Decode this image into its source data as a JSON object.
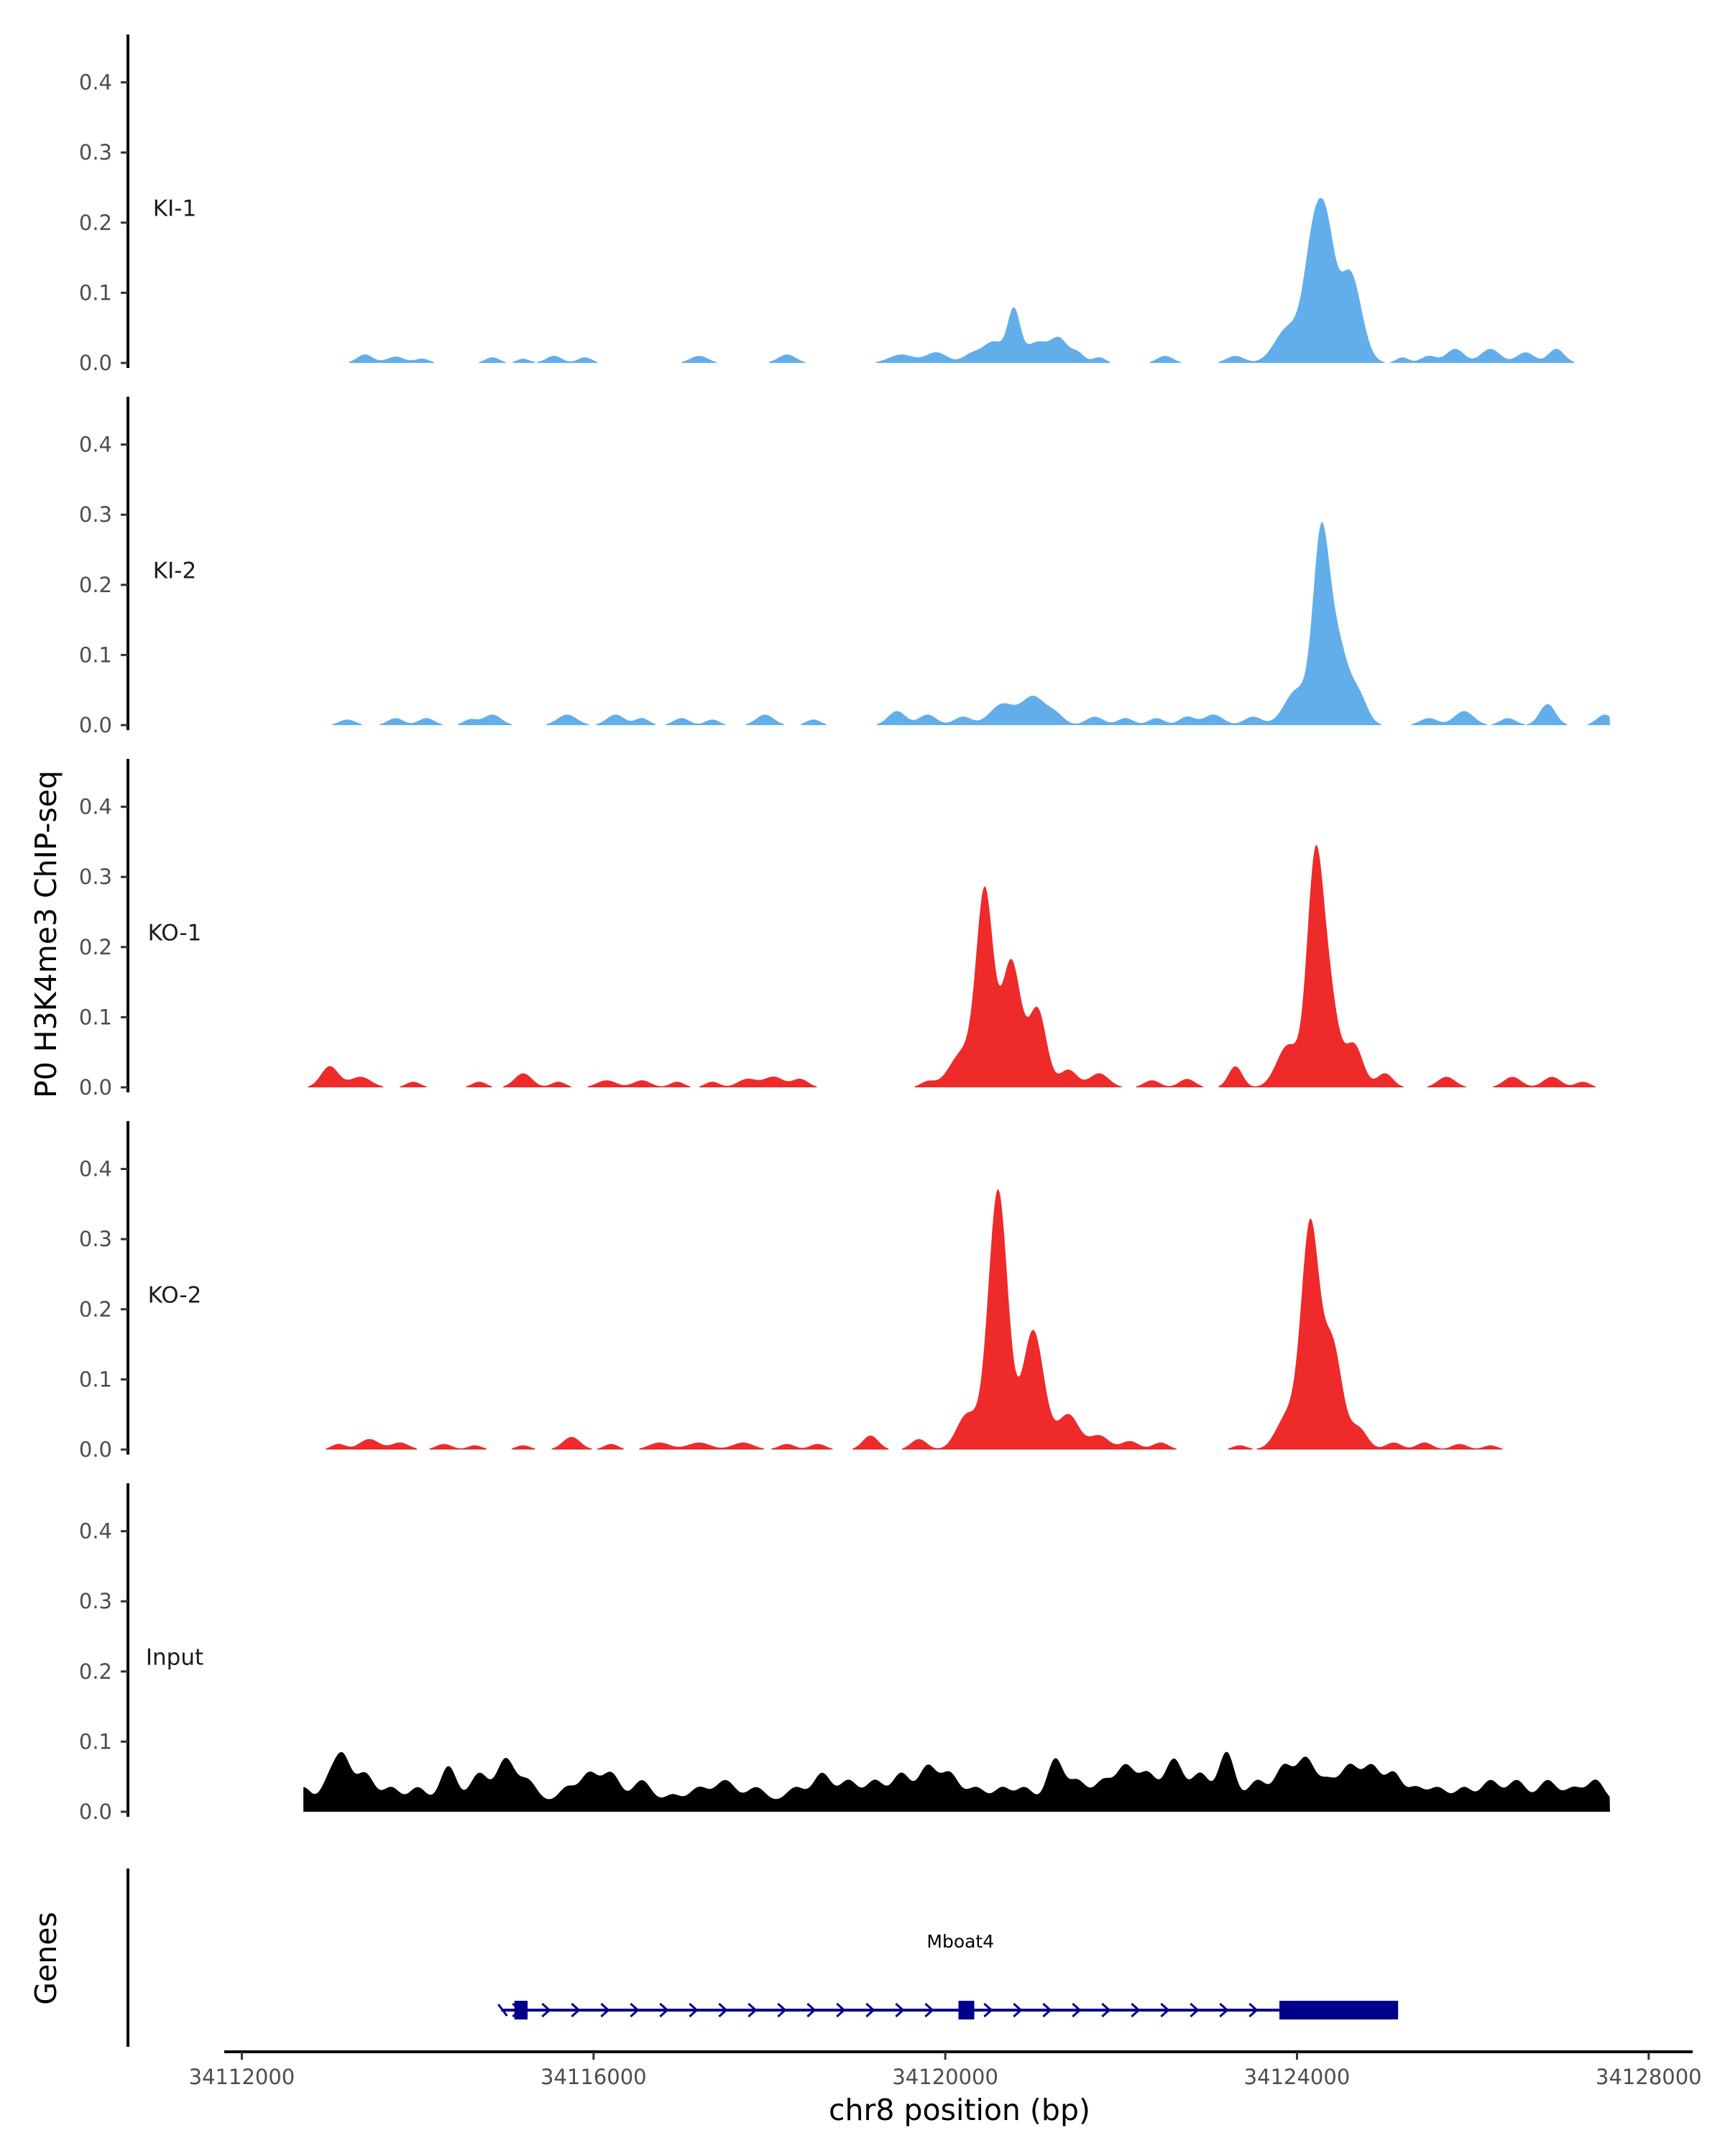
{
  "chart_data": {
    "type": "area",
    "title": "",
    "ylabel": "P0 H3K4me3 ChIP-seq",
    "xlabel": "chr8 position (bp)",
    "xlim": [
      34111800,
      34128500
    ],
    "ylim": [
      0,
      0.45
    ],
    "y_ticks": [
      0,
      0.1,
      0.2,
      0.3,
      0.4
    ],
    "y_tick_labels": [
      "0.0",
      "0.1",
      "0.2",
      "0.3",
      "0.4"
    ],
    "x_ticks": [
      34112000,
      34116000,
      34120000,
      34124000,
      34128000
    ],
    "x_tick_labels": [
      "34112000",
      "34116000",
      "34120000",
      "34124000",
      "34128000"
    ],
    "series": [
      {
        "name": "KI-1",
        "color": "#62AEEB",
        "peaks": [
          [
            34113400,
            0.012,
            90
          ],
          [
            34113750,
            0.009,
            100
          ],
          [
            34114050,
            0.006,
            80
          ],
          [
            34114850,
            0.008,
            80
          ],
          [
            34115200,
            0.006,
            70
          ],
          [
            34115550,
            0.01,
            90
          ],
          [
            34115900,
            0.008,
            80
          ],
          [
            34117200,
            0.01,
            100
          ],
          [
            34118200,
            0.012,
            100
          ],
          [
            34119500,
            0.012,
            140
          ],
          [
            34119900,
            0.015,
            120
          ],
          [
            34120300,
            0.012,
            100
          ],
          [
            34120550,
            0.03,
            120
          ],
          [
            34120780,
            0.07,
            70
          ],
          [
            34121050,
            0.03,
            140
          ],
          [
            34121300,
            0.03,
            90
          ],
          [
            34121500,
            0.015,
            80
          ],
          [
            34121750,
            0.008,
            70
          ],
          [
            34122500,
            0.01,
            90
          ],
          [
            34123300,
            0.01,
            100
          ],
          [
            34123900,
            0.05,
            150
          ],
          [
            34124200,
            0.18,
            110
          ],
          [
            34124350,
            0.12,
            90
          ],
          [
            34124600,
            0.13,
            130
          ],
          [
            34125200,
            0.008,
            70
          ],
          [
            34125500,
            0.01,
            90
          ],
          [
            34125800,
            0.02,
            100
          ],
          [
            34126200,
            0.02,
            110
          ],
          [
            34126600,
            0.015,
            100
          ],
          [
            34126950,
            0.02,
            90
          ]
        ]
      },
      {
        "name": "KI-2",
        "color": "#62AEEB",
        "peaks": [
          [
            34113200,
            0.008,
            90
          ],
          [
            34113750,
            0.01,
            90
          ],
          [
            34114100,
            0.01,
            90
          ],
          [
            34114600,
            0.008,
            80
          ],
          [
            34114850,
            0.015,
            100
          ],
          [
            34115700,
            0.015,
            110
          ],
          [
            34116250,
            0.015,
            100
          ],
          [
            34116550,
            0.01,
            80
          ],
          [
            34117000,
            0.01,
            90
          ],
          [
            34117350,
            0.008,
            80
          ],
          [
            34117950,
            0.015,
            100
          ],
          [
            34118500,
            0.008,
            80
          ],
          [
            34119450,
            0.02,
            100
          ],
          [
            34119800,
            0.015,
            100
          ],
          [
            34120200,
            0.012,
            100
          ],
          [
            34120650,
            0.03,
            140
          ],
          [
            34121000,
            0.04,
            130
          ],
          [
            34121250,
            0.015,
            100
          ],
          [
            34121700,
            0.012,
            100
          ],
          [
            34122050,
            0.01,
            90
          ],
          [
            34122400,
            0.01,
            90
          ],
          [
            34122750,
            0.012,
            90
          ],
          [
            34123050,
            0.015,
            110
          ],
          [
            34123500,
            0.012,
            100
          ],
          [
            34124000,
            0.05,
            140
          ],
          [
            34124270,
            0.24,
            90
          ],
          [
            34124450,
            0.12,
            120
          ],
          [
            34124700,
            0.04,
            100
          ],
          [
            34125500,
            0.01,
            100
          ],
          [
            34125900,
            0.02,
            110
          ],
          [
            34126400,
            0.01,
            90
          ],
          [
            34126850,
            0.03,
            90
          ],
          [
            34127500,
            0.015,
            90
          ]
        ]
      },
      {
        "name": "KO-1",
        "color": "#EE2A2B",
        "peaks": [
          [
            34113000,
            0.03,
            100
          ],
          [
            34113350,
            0.015,
            120
          ],
          [
            34113950,
            0.008,
            80
          ],
          [
            34114700,
            0.008,
            80
          ],
          [
            34115200,
            0.02,
            100
          ],
          [
            34115600,
            0.008,
            80
          ],
          [
            34116150,
            0.01,
            110
          ],
          [
            34116550,
            0.01,
            100
          ],
          [
            34116950,
            0.008,
            80
          ],
          [
            34117350,
            0.008,
            80
          ],
          [
            34117750,
            0.012,
            110
          ],
          [
            34118050,
            0.015,
            110
          ],
          [
            34118350,
            0.012,
            90
          ],
          [
            34119800,
            0.008,
            80
          ],
          [
            34120200,
            0.05,
            150
          ],
          [
            34120450,
            0.27,
            95
          ],
          [
            34120750,
            0.18,
            110
          ],
          [
            34121050,
            0.11,
            100
          ],
          [
            34121400,
            0.025,
            100
          ],
          [
            34121750,
            0.02,
            110
          ],
          [
            34122350,
            0.01,
            90
          ],
          [
            34122750,
            0.012,
            90
          ],
          [
            34123300,
            0.03,
            80
          ],
          [
            34123900,
            0.06,
            130
          ],
          [
            34124200,
            0.28,
            90
          ],
          [
            34124350,
            0.14,
            110
          ],
          [
            34124650,
            0.06,
            100
          ],
          [
            34125000,
            0.02,
            90
          ],
          [
            34125700,
            0.015,
            100
          ],
          [
            34126450,
            0.015,
            100
          ],
          [
            34126900,
            0.015,
            100
          ],
          [
            34127250,
            0.008,
            80
          ]
        ]
      },
      {
        "name": "KO-2",
        "color": "#EE2A2B",
        "peaks": [
          [
            34113100,
            0.008,
            80
          ],
          [
            34113450,
            0.015,
            110
          ],
          [
            34113800,
            0.01,
            100
          ],
          [
            34114300,
            0.008,
            90
          ],
          [
            34114650,
            0.006,
            80
          ],
          [
            34115200,
            0.006,
            80
          ],
          [
            34115750,
            0.018,
            100
          ],
          [
            34116200,
            0.008,
            80
          ],
          [
            34116750,
            0.01,
            120
          ],
          [
            34117200,
            0.01,
            130
          ],
          [
            34117700,
            0.01,
            120
          ],
          [
            34118200,
            0.008,
            90
          ],
          [
            34118550,
            0.008,
            90
          ],
          [
            34119150,
            0.02,
            90
          ],
          [
            34119700,
            0.015,
            90
          ],
          [
            34120250,
            0.05,
            120
          ],
          [
            34120600,
            0.37,
            110
          ],
          [
            34121000,
            0.17,
            120
          ],
          [
            34121400,
            0.05,
            120
          ],
          [
            34121750,
            0.02,
            110
          ],
          [
            34122100,
            0.012,
            100
          ],
          [
            34122450,
            0.01,
            90
          ],
          [
            34123350,
            0.006,
            80
          ],
          [
            34123900,
            0.05,
            130
          ],
          [
            34124150,
            0.31,
            100
          ],
          [
            34124400,
            0.15,
            110
          ],
          [
            34124700,
            0.03,
            100
          ],
          [
            34125100,
            0.01,
            90
          ],
          [
            34125450,
            0.01,
            90
          ],
          [
            34125850,
            0.008,
            90
          ],
          [
            34126200,
            0.006,
            80
          ]
        ]
      },
      {
        "name": "Input",
        "color": "#000000",
        "peaks": [
          [
            34112700,
            0.02,
            80
          ],
          [
            34113000,
            0.03,
            90
          ],
          [
            34113150,
            0.06,
            90
          ],
          [
            34113400,
            0.04,
            100
          ],
          [
            34113700,
            0.02,
            90
          ],
          [
            34114000,
            0.02,
            90
          ],
          [
            34114350,
            0.05,
            90
          ],
          [
            34114700,
            0.04,
            100
          ],
          [
            34115000,
            0.06,
            100
          ],
          [
            34115250,
            0.03,
            100
          ],
          [
            34115700,
            0.02,
            90
          ],
          [
            34115950,
            0.04,
            100
          ],
          [
            34116200,
            0.04,
            100
          ],
          [
            34116550,
            0.03,
            100
          ],
          [
            34116900,
            0.01,
            80
          ],
          [
            34117200,
            0.02,
            100
          ],
          [
            34117500,
            0.03,
            110
          ],
          [
            34117850,
            0.02,
            100
          ],
          [
            34118300,
            0.02,
            100
          ],
          [
            34118600,
            0.04,
            100
          ],
          [
            34118900,
            0.03,
            100
          ],
          [
            34119200,
            0.03,
            100
          ],
          [
            34119500,
            0.04,
            100
          ],
          [
            34119800,
            0.05,
            100
          ],
          [
            34120050,
            0.04,
            100
          ],
          [
            34120350,
            0.02,
            100
          ],
          [
            34120650,
            0.02,
            90
          ],
          [
            34120900,
            0.02,
            90
          ],
          [
            34121250,
            0.06,
            90
          ],
          [
            34121500,
            0.03,
            100
          ],
          [
            34121800,
            0.03,
            100
          ],
          [
            34122050,
            0.05,
            100
          ],
          [
            34122300,
            0.04,
            100
          ],
          [
            34122600,
            0.06,
            100
          ],
          [
            34122900,
            0.04,
            100
          ],
          [
            34123200,
            0.07,
            90
          ],
          [
            34123550,
            0.03,
            100
          ],
          [
            34123850,
            0.05,
            100
          ],
          [
            34124100,
            0.06,
            100
          ],
          [
            34124350,
            0.03,
            100
          ],
          [
            34124600,
            0.05,
            100
          ],
          [
            34124850,
            0.05,
            100
          ],
          [
            34125100,
            0.04,
            90
          ],
          [
            34125350,
            0.02,
            90
          ],
          [
            34125600,
            0.02,
            100
          ],
          [
            34125900,
            0.02,
            90
          ],
          [
            34126200,
            0.03,
            100
          ],
          [
            34126500,
            0.03,
            100
          ],
          [
            34126850,
            0.03,
            100
          ],
          [
            34127150,
            0.02,
            100
          ],
          [
            34127400,
            0.03,
            90
          ]
        ],
        "baseline": 0.015
      }
    ],
    "genes_track": {
      "label": "Genes",
      "gene_name": "Mboat4",
      "color": "#00008B",
      "start": 34114950,
      "end": 34125150,
      "strand": "+",
      "exons": [
        [
          34115100,
          34115250
        ],
        [
          34120150,
          34120330
        ],
        [
          34123800,
          34125150
        ]
      ]
    }
  }
}
